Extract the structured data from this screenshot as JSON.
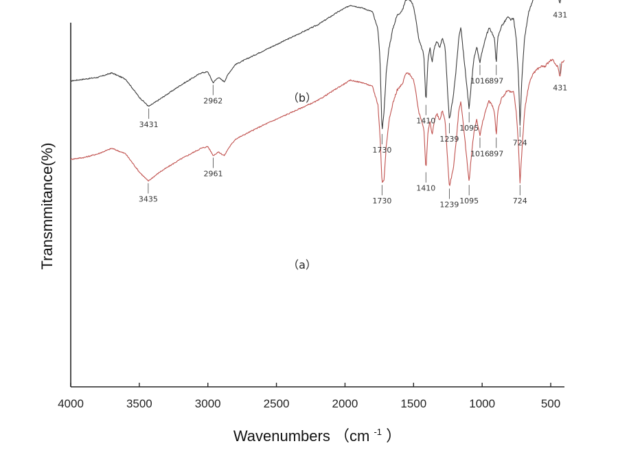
{
  "chart_data": {
    "type": "line",
    "xlabel": "Wavenumbers",
    "xlabel_unit_open": "（cm",
    "xlabel_unit_sup": "-1",
    "xlabel_unit_close": "）",
    "ylabel": "Transmmitance(%)",
    "xlim": [
      4000,
      400
    ],
    "x_reversed": true,
    "x_ticks": [
      4000,
      3500,
      3000,
      2500,
      2000,
      1500,
      1000,
      500
    ],
    "y_ticks_shown": false,
    "grid": false,
    "series": [
      {
        "name": "（b）",
        "color": "#3a3a3a",
        "curve": [
          [
            4000,
            0.84
          ],
          [
            3900,
            0.845
          ],
          [
            3800,
            0.85
          ],
          [
            3700,
            0.862
          ],
          [
            3600,
            0.845
          ],
          [
            3500,
            0.795
          ],
          [
            3431,
            0.77
          ],
          [
            3350,
            0.79
          ],
          [
            3200,
            0.828
          ],
          [
            3050,
            0.862
          ],
          [
            3000,
            0.865
          ],
          [
            2962,
            0.835
          ],
          [
            2925,
            0.85
          ],
          [
            2880,
            0.838
          ],
          [
            2850,
            0.86
          ],
          [
            2800,
            0.885
          ],
          [
            2600,
            0.922
          ],
          [
            2400,
            0.958
          ],
          [
            2200,
            0.994
          ],
          [
            2050,
            1.03
          ],
          [
            1960,
            1.048
          ],
          [
            1870,
            1.04
          ],
          [
            1800,
            1.03
          ],
          [
            1760,
            0.98
          ],
          [
            1745,
            0.9
          ],
          [
            1730,
            0.7
          ],
          [
            1715,
            0.76
          ],
          [
            1700,
            0.86
          ],
          [
            1680,
            0.93
          ],
          [
            1650,
            0.985
          ],
          [
            1620,
            1.02
          ],
          [
            1580,
            1.035
          ],
          [
            1560,
            1.06
          ],
          [
            1540,
            1.068
          ],
          [
            1520,
            1.06
          ],
          [
            1500,
            1.045
          ],
          [
            1480,
            1.0
          ],
          [
            1460,
            0.95
          ],
          [
            1440,
            0.93
          ],
          [
            1425,
            0.91
          ],
          [
            1410,
            0.78
          ],
          [
            1395,
            0.9
          ],
          [
            1380,
            0.93
          ],
          [
            1365,
            0.89
          ],
          [
            1350,
            0.93
          ],
          [
            1330,
            0.95
          ],
          [
            1310,
            0.93
          ],
          [
            1290,
            0.96
          ],
          [
            1270,
            0.93
          ],
          [
            1239,
            0.73
          ],
          [
            1210,
            0.8
          ],
          [
            1190,
            0.87
          ],
          [
            1170,
            0.96
          ],
          [
            1155,
            0.99
          ],
          [
            1140,
            0.93
          ],
          [
            1110,
            0.82
          ],
          [
            1095,
            0.76
          ],
          [
            1080,
            0.83
          ],
          [
            1060,
            0.9
          ],
          [
            1040,
            0.935
          ],
          [
            1016,
            0.89
          ],
          [
            995,
            0.93
          ],
          [
            970,
            0.965
          ],
          [
            950,
            0.985
          ],
          [
            930,
            0.975
          ],
          [
            910,
            0.955
          ],
          [
            897,
            0.89
          ],
          [
            885,
            0.96
          ],
          [
            860,
            0.99
          ],
          [
            840,
            1.0
          ],
          [
            815,
            1.015
          ],
          [
            790,
            1.008
          ],
          [
            770,
            1.01
          ],
          [
            750,
            0.95
          ],
          [
            735,
            0.85
          ],
          [
            724,
            0.72
          ],
          [
            710,
            0.85
          ],
          [
            690,
            0.96
          ],
          [
            660,
            1.03
          ],
          [
            630,
            1.06
          ],
          [
            600,
            1.075
          ],
          [
            570,
            1.08
          ],
          [
            540,
            1.08
          ],
          [
            515,
            1.092
          ],
          [
            495,
            1.098
          ],
          [
            480,
            1.095
          ],
          [
            465,
            1.085
          ],
          [
            450,
            1.08
          ],
          [
            431,
            1.05
          ],
          [
            420,
            1.09
          ],
          [
            410,
            1.095
          ]
        ],
        "peaks": [
          "3431",
          "2962",
          "1730",
          "1410",
          "1239",
          "1095",
          "1016",
          "897",
          "724",
          "431"
        ]
      },
      {
        "name": "（a）",
        "color": "#c0504d",
        "curve": [
          [
            4000,
            0.625
          ],
          [
            3900,
            0.63
          ],
          [
            3800,
            0.64
          ],
          [
            3700,
            0.655
          ],
          [
            3600,
            0.64
          ],
          [
            3500,
            0.59
          ],
          [
            3435,
            0.565
          ],
          [
            3350,
            0.59
          ],
          [
            3200,
            0.625
          ],
          [
            3050,
            0.655
          ],
          [
            3000,
            0.66
          ],
          [
            2961,
            0.635
          ],
          [
            2925,
            0.645
          ],
          [
            2880,
            0.635
          ],
          [
            2850,
            0.655
          ],
          [
            2800,
            0.68
          ],
          [
            2600,
            0.718
          ],
          [
            2400,
            0.752
          ],
          [
            2200,
            0.786
          ],
          [
            2050,
            0.822
          ],
          [
            1960,
            0.842
          ],
          [
            1870,
            0.835
          ],
          [
            1800,
            0.825
          ],
          [
            1760,
            0.775
          ],
          [
            1745,
            0.69
          ],
          [
            1730,
            0.56
          ],
          [
            1715,
            0.57
          ],
          [
            1700,
            0.66
          ],
          [
            1680,
            0.73
          ],
          [
            1650,
            0.78
          ],
          [
            1620,
            0.815
          ],
          [
            1580,
            0.832
          ],
          [
            1560,
            0.858
          ],
          [
            1540,
            0.862
          ],
          [
            1520,
            0.855
          ],
          [
            1500,
            0.842
          ],
          [
            1480,
            0.8
          ],
          [
            1460,
            0.75
          ],
          [
            1440,
            0.73
          ],
          [
            1425,
            0.71
          ],
          [
            1410,
            0.595
          ],
          [
            1395,
            0.7
          ],
          [
            1380,
            0.73
          ],
          [
            1365,
            0.69
          ],
          [
            1350,
            0.73
          ],
          [
            1330,
            0.75
          ],
          [
            1310,
            0.73
          ],
          [
            1290,
            0.76
          ],
          [
            1270,
            0.73
          ],
          [
            1239,
            0.55
          ],
          [
            1210,
            0.6
          ],
          [
            1190,
            0.67
          ],
          [
            1170,
            0.76
          ],
          [
            1155,
            0.785
          ],
          [
            1140,
            0.73
          ],
          [
            1110,
            0.62
          ],
          [
            1095,
            0.56
          ],
          [
            1080,
            0.63
          ],
          [
            1060,
            0.7
          ],
          [
            1040,
            0.735
          ],
          [
            1016,
            0.69
          ],
          [
            995,
            0.73
          ],
          [
            970,
            0.765
          ],
          [
            950,
            0.785
          ],
          [
            930,
            0.775
          ],
          [
            910,
            0.755
          ],
          [
            897,
            0.69
          ],
          [
            885,
            0.76
          ],
          [
            860,
            0.79
          ],
          [
            840,
            0.8
          ],
          [
            815,
            0.815
          ],
          [
            790,
            0.808
          ],
          [
            770,
            0.81
          ],
          [
            750,
            0.75
          ],
          [
            735,
            0.66
          ],
          [
            724,
            0.56
          ],
          [
            710,
            0.65
          ],
          [
            690,
            0.76
          ],
          [
            660,
            0.83
          ],
          [
            630,
            0.86
          ],
          [
            600,
            0.872
          ],
          [
            570,
            0.88
          ],
          [
            540,
            0.88
          ],
          [
            515,
            0.892
          ],
          [
            495,
            0.898
          ],
          [
            480,
            0.895
          ],
          [
            465,
            0.885
          ],
          [
            450,
            0.88
          ],
          [
            431,
            0.85
          ],
          [
            420,
            0.89
          ],
          [
            410,
            0.895
          ]
        ],
        "peaks": [
          "3435",
          "2961",
          "1730",
          "1410",
          "1239",
          "1095",
          "1016",
          "897",
          "724",
          "431"
        ]
      }
    ]
  }
}
